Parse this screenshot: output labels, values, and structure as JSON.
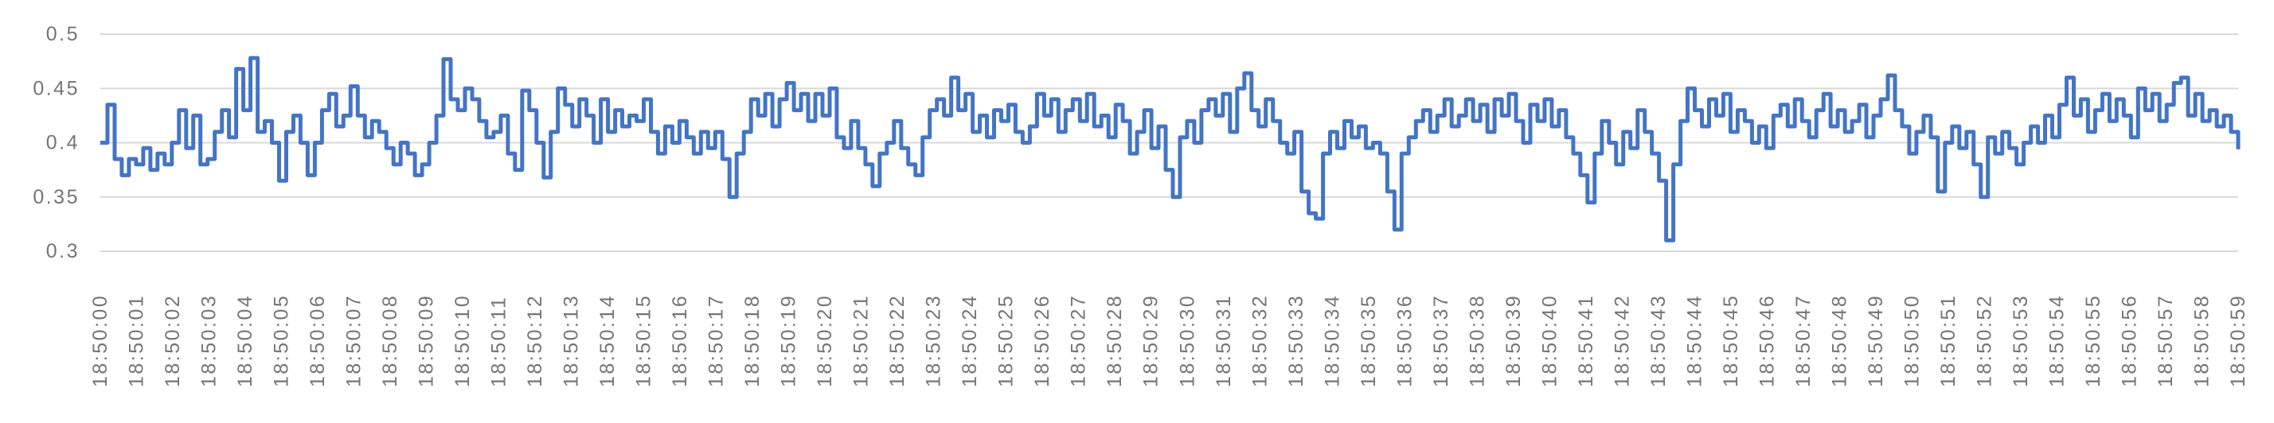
{
  "chart_data": {
    "type": "line",
    "step": true,
    "title": "",
    "xlabel": "",
    "ylabel": "",
    "legend": "none",
    "grid": "horizontal",
    "ylim": [
      0.3,
      0.5
    ],
    "y_ticks": [
      "0.5",
      "0.45",
      "0.4",
      "0.35",
      "0.3"
    ],
    "series_color": "#4374c6",
    "grid_color": "#d9d9d9",
    "label_color": "#757575",
    "samples_per_label": 5,
    "x_labels": [
      "18:50:00",
      "18:50:01",
      "18:50:02",
      "18:50:03",
      "18:50:04",
      "18:50:05",
      "18:50:06",
      "18:50:07",
      "18:50:08",
      "18:50:09",
      "18:50:10",
      "18:50:11",
      "18:50:12",
      "18:50:13",
      "18:50:14",
      "18:50:15",
      "18:50:16",
      "18:50:17",
      "18:50:18",
      "18:50:19",
      "18:50:20",
      "18:50:21",
      "18:50:22",
      "18:50:23",
      "18:50:24",
      "18:50:25",
      "18:50:26",
      "18:50:27",
      "18:50:28",
      "18:50:29",
      "18:50:30",
      "18:50:31",
      "18:50:32",
      "18:50:33",
      "18:50:34",
      "18:50:35",
      "18:50:36",
      "18:50:37",
      "18:50:38",
      "18:50:39",
      "18:50:40",
      "18:50:41",
      "18:50:42",
      "18:50:43",
      "18:50:44",
      "18:50:45",
      "18:50:46",
      "18:50:47",
      "18:50:48",
      "18:50:49",
      "18:50:50",
      "18:50:51",
      "18:50:52",
      "18:50:53",
      "18:50:54",
      "18:50:55",
      "18:50:56",
      "18:50:57",
      "18:50:58",
      "18:50:59"
    ],
    "values": [
      0.4,
      0.435,
      0.385,
      0.37,
      0.385,
      0.38,
      0.395,
      0.375,
      0.39,
      0.38,
      0.4,
      0.43,
      0.395,
      0.425,
      0.38,
      0.385,
      0.41,
      0.43,
      0.405,
      0.468,
      0.43,
      0.478,
      0.41,
      0.42,
      0.4,
      0.365,
      0.41,
      0.425,
      0.4,
      0.37,
      0.4,
      0.43,
      0.445,
      0.415,
      0.425,
      0.452,
      0.425,
      0.405,
      0.42,
      0.41,
      0.395,
      0.38,
      0.4,
      0.39,
      0.37,
      0.38,
      0.4,
      0.425,
      0.477,
      0.44,
      0.43,
      0.45,
      0.44,
      0.42,
      0.405,
      0.41,
      0.425,
      0.39,
      0.375,
      0.448,
      0.43,
      0.4,
      0.368,
      0.41,
      0.45,
      0.435,
      0.415,
      0.44,
      0.425,
      0.4,
      0.44,
      0.41,
      0.43,
      0.415,
      0.425,
      0.42,
      0.44,
      0.41,
      0.39,
      0.415,
      0.4,
      0.42,
      0.405,
      0.39,
      0.41,
      0.395,
      0.41,
      0.385,
      0.35,
      0.39,
      0.41,
      0.44,
      0.425,
      0.445,
      0.415,
      0.44,
      0.455,
      0.43,
      0.445,
      0.42,
      0.445,
      0.425,
      0.45,
      0.405,
      0.395,
      0.42,
      0.395,
      0.38,
      0.36,
      0.39,
      0.4,
      0.42,
      0.395,
      0.38,
      0.37,
      0.405,
      0.43,
      0.44,
      0.425,
      0.46,
      0.43,
      0.445,
      0.41,
      0.425,
      0.405,
      0.43,
      0.42,
      0.435,
      0.41,
      0.4,
      0.415,
      0.445,
      0.425,
      0.44,
      0.41,
      0.43,
      0.44,
      0.42,
      0.445,
      0.415,
      0.425,
      0.405,
      0.435,
      0.42,
      0.39,
      0.41,
      0.43,
      0.395,
      0.415,
      0.375,
      0.35,
      0.405,
      0.42,
      0.4,
      0.43,
      0.44,
      0.425,
      0.445,
      0.41,
      0.45,
      0.464,
      0.43,
      0.415,
      0.44,
      0.42,
      0.4,
      0.39,
      0.41,
      0.355,
      0.335,
      0.33,
      0.39,
      0.41,
      0.395,
      0.42,
      0.405,
      0.415,
      0.395,
      0.4,
      0.39,
      0.355,
      0.32,
      0.39,
      0.405,
      0.42,
      0.43,
      0.41,
      0.425,
      0.44,
      0.415,
      0.425,
      0.44,
      0.42,
      0.435,
      0.41,
      0.44,
      0.425,
      0.445,
      0.42,
      0.4,
      0.435,
      0.42,
      0.44,
      0.415,
      0.43,
      0.405,
      0.39,
      0.37,
      0.345,
      0.39,
      0.42,
      0.4,
      0.38,
      0.41,
      0.395,
      0.43,
      0.41,
      0.39,
      0.365,
      0.31,
      0.38,
      0.42,
      0.45,
      0.43,
      0.415,
      0.44,
      0.425,
      0.445,
      0.41,
      0.43,
      0.42,
      0.4,
      0.415,
      0.395,
      0.425,
      0.435,
      0.415,
      0.44,
      0.42,
      0.405,
      0.43,
      0.445,
      0.415,
      0.43,
      0.41,
      0.42,
      0.435,
      0.405,
      0.425,
      0.44,
      0.462,
      0.43,
      0.415,
      0.39,
      0.41,
      0.425,
      0.405,
      0.355,
      0.4,
      0.415,
      0.395,
      0.41,
      0.38,
      0.35,
      0.405,
      0.39,
      0.41,
      0.395,
      0.38,
      0.4,
      0.415,
      0.4,
      0.425,
      0.405,
      0.435,
      0.46,
      0.425,
      0.44,
      0.41,
      0.43,
      0.445,
      0.42,
      0.44,
      0.425,
      0.405,
      0.45,
      0.43,
      0.445,
      0.42,
      0.435,
      0.455,
      0.46,
      0.425,
      0.445,
      0.42,
      0.43,
      0.415,
      0.425,
      0.41,
      0.394
    ]
  }
}
